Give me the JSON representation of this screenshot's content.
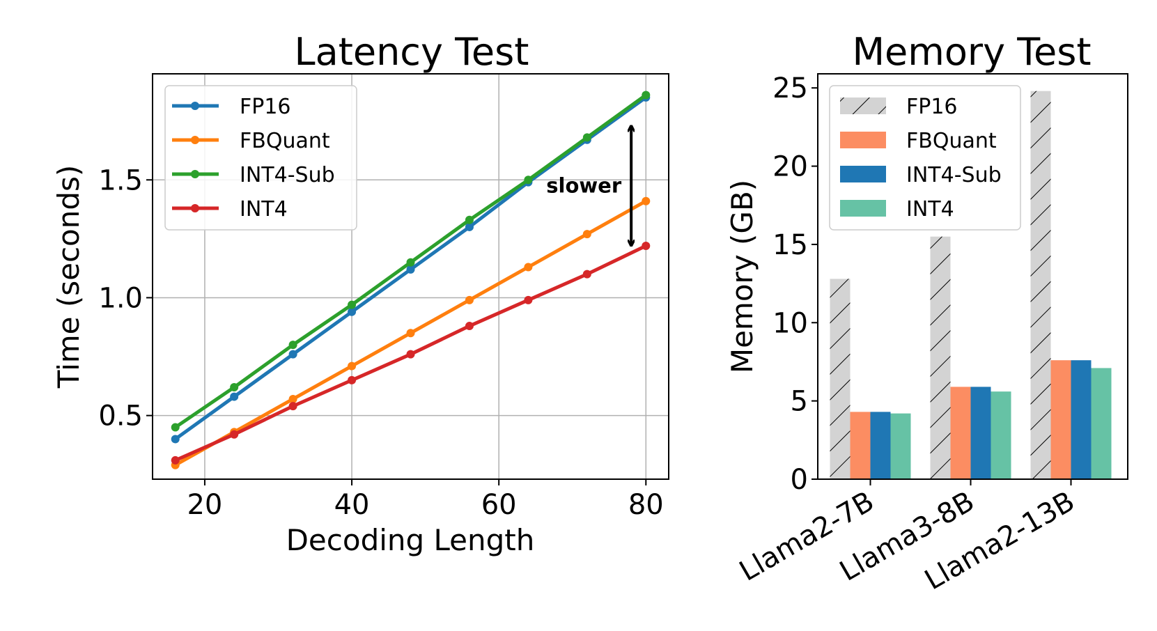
{
  "chart_data": [
    {
      "type": "line",
      "title": "Latency Test",
      "xlabel": "Decoding Length",
      "ylabel": "Time (seconds)",
      "xlim": [
        12.9,
        83.1
      ],
      "ylim": [
        0.23,
        1.95
      ],
      "xticks": [
        20,
        40,
        60,
        80
      ],
      "xtick_labels": [
        "20",
        "40",
        "60",
        "80"
      ],
      "yticks": [
        0.5,
        1.0,
        1.5
      ],
      "ytick_labels": [
        "0.5",
        "1.0",
        "1.5"
      ],
      "grid": true,
      "legend_position": "top-left",
      "x": [
        16,
        24,
        32,
        40,
        48,
        56,
        64,
        72,
        80
      ],
      "series": [
        {
          "name": "FP16",
          "color": "#1f77b4",
          "values": [
            0.4,
            0.58,
            0.76,
            0.94,
            1.12,
            1.3,
            1.49,
            1.67,
            1.85
          ]
        },
        {
          "name": "FBQuant",
          "color": "#ff7f0e",
          "values": [
            0.29,
            0.43,
            0.57,
            0.71,
            0.85,
            0.99,
            1.13,
            1.27,
            1.41
          ]
        },
        {
          "name": "INT4-Sub",
          "color": "#2ca02c",
          "values": [
            0.45,
            0.62,
            0.8,
            0.97,
            1.15,
            1.33,
            1.5,
            1.68,
            1.86
          ]
        },
        {
          "name": "INT4",
          "color": "#d62728",
          "values": [
            0.31,
            0.42,
            0.54,
            0.65,
            0.76,
            0.88,
            0.99,
            1.1,
            1.22
          ]
        }
      ],
      "annotations": [
        {
          "text": "slower",
          "x": 78,
          "y_from": 1.73,
          "y_to": 1.22
        }
      ]
    },
    {
      "type": "bar",
      "title": "Memory Test",
      "xlabel": "",
      "ylabel": "Memory (GB)",
      "ylim": [
        0,
        25.9
      ],
      "yticks": [
        0,
        5,
        10,
        15,
        20,
        25
      ],
      "ytick_labels": [
        "0",
        "5",
        "10",
        "15",
        "20",
        "25"
      ],
      "grid": false,
      "legend_position": "top-left",
      "categories": [
        "Llama2-7B",
        "Llama3-8B",
        "Llama2-13B"
      ],
      "series": [
        {
          "name": "FP16",
          "color": "#d3d3d3",
          "hatch": "//",
          "values": [
            12.8,
            15.5,
            24.8
          ]
        },
        {
          "name": "FBQuant",
          "color": "#fc8d62",
          "values": [
            4.3,
            5.9,
            7.6
          ]
        },
        {
          "name": "INT4-Sub",
          "color": "#1f77b4",
          "values": [
            4.3,
            5.9,
            7.6
          ]
        },
        {
          "name": "INT4",
          "color": "#66c2a5",
          "values": [
            4.2,
            5.6,
            7.1
          ]
        }
      ]
    }
  ]
}
